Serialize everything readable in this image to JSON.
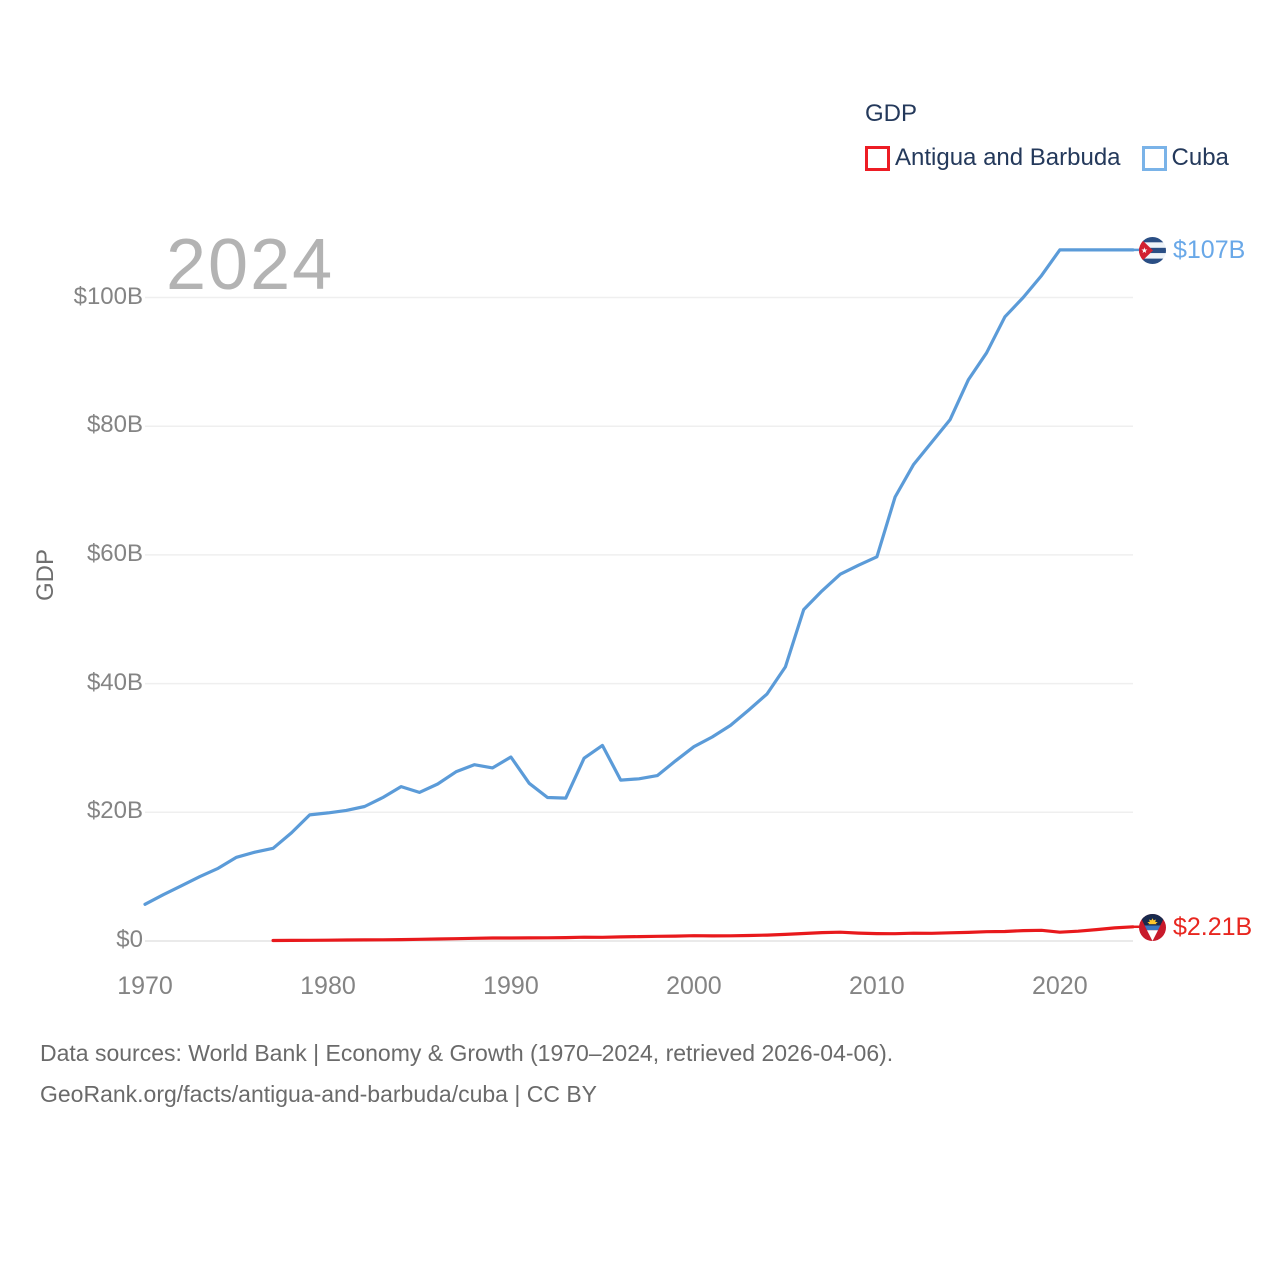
{
  "watermark": "2024",
  "legend": {
    "title": "GDP",
    "items": [
      {
        "label": "Antigua and Barbuda",
        "color": "#ed1c24"
      },
      {
        "label": "Cuba",
        "color": "#7ab3e8"
      }
    ]
  },
  "y_axis": {
    "title": "GDP",
    "ticks": [
      {
        "label": "$0",
        "value": 0
      },
      {
        "label": "$20B",
        "value": 20
      },
      {
        "label": "$40B",
        "value": 40
      },
      {
        "label": "$60B",
        "value": 60
      },
      {
        "label": "$80B",
        "value": 80
      },
      {
        "label": "$100B",
        "value": 100
      }
    ]
  },
  "x_axis": {
    "ticks": [
      {
        "label": "1970",
        "year": 1970
      },
      {
        "label": "1980",
        "year": 1980
      },
      {
        "label": "1990",
        "year": 1990
      },
      {
        "label": "2000",
        "year": 2000
      },
      {
        "label": "2010",
        "year": 2010
      },
      {
        "label": "2020",
        "year": 2020
      }
    ]
  },
  "end_labels": {
    "cuba": {
      "series": "Cuba",
      "text": "$107B",
      "color": "#69a8e8",
      "icon": "cuba-flag-icon"
    },
    "antigua": {
      "series": "Antigua and Barbuda",
      "text": "$2.21B",
      "color": "#e8261f",
      "icon": "antigua-flag-icon"
    }
  },
  "footer": {
    "line1": "Data sources: World Bank | Economy & Growth (1970–2024, retrieved 2026-04-06).",
    "line2": "GeoRank.org/facts/antigua-and-barbuda/cuba | CC BY"
  },
  "chart_data": {
    "type": "line",
    "title": "GDP",
    "xlabel": "",
    "ylabel": "GDP",
    "xlim": [
      1970,
      2024
    ],
    "ylim": [
      0,
      110
    ],
    "grid": true,
    "legend_position": "top-right",
    "units": "billions USD",
    "series": [
      {
        "name": "Antigua and Barbuda",
        "color": "#e8191c",
        "end_value_label": "$2.21B",
        "points": [
          [
            1977,
            0.08
          ],
          [
            1978,
            0.09
          ],
          [
            1979,
            0.11
          ],
          [
            1980,
            0.13
          ],
          [
            1981,
            0.15
          ],
          [
            1982,
            0.17
          ],
          [
            1983,
            0.19
          ],
          [
            1984,
            0.22
          ],
          [
            1985,
            0.26
          ],
          [
            1986,
            0.31
          ],
          [
            1987,
            0.36
          ],
          [
            1988,
            0.42
          ],
          [
            1989,
            0.46
          ],
          [
            1990,
            0.46
          ],
          [
            1991,
            0.48
          ],
          [
            1992,
            0.5
          ],
          [
            1993,
            0.53
          ],
          [
            1994,
            0.59
          ],
          [
            1995,
            0.58
          ],
          [
            1996,
            0.63
          ],
          [
            1997,
            0.68
          ],
          [
            1998,
            0.73
          ],
          [
            1999,
            0.76
          ],
          [
            2000,
            0.83
          ],
          [
            2001,
            0.8
          ],
          [
            2002,
            0.81
          ],
          [
            2003,
            0.86
          ],
          [
            2004,
            0.92
          ],
          [
            2005,
            1.02
          ],
          [
            2006,
            1.16
          ],
          [
            2007,
            1.31
          ],
          [
            2008,
            1.37
          ],
          [
            2009,
            1.22
          ],
          [
            2010,
            1.15
          ],
          [
            2011,
            1.14
          ],
          [
            2012,
            1.21
          ],
          [
            2013,
            1.19
          ],
          [
            2014,
            1.27
          ],
          [
            2015,
            1.34
          ],
          [
            2016,
            1.44
          ],
          [
            2017,
            1.47
          ],
          [
            2018,
            1.61
          ],
          [
            2019,
            1.66
          ],
          [
            2020,
            1.37
          ],
          [
            2021,
            1.53
          ],
          [
            2022,
            1.77
          ],
          [
            2023,
            2.03
          ],
          [
            2024,
            2.21
          ]
        ]
      },
      {
        "name": "Cuba",
        "color": "#5b9bd8",
        "end_value_label": "$107B",
        "points": [
          [
            1970,
            5.7
          ],
          [
            1971,
            7.2
          ],
          [
            1972,
            8.6
          ],
          [
            1973,
            10.0
          ],
          [
            1974,
            11.3
          ],
          [
            1975,
            13.0
          ],
          [
            1976,
            13.8
          ],
          [
            1977,
            14.4
          ],
          [
            1978,
            16.8
          ],
          [
            1979,
            19.6
          ],
          [
            1980,
            19.9
          ],
          [
            1981,
            20.3
          ],
          [
            1982,
            20.9
          ],
          [
            1983,
            22.3
          ],
          [
            1984,
            24.0
          ],
          [
            1985,
            23.1
          ],
          [
            1986,
            24.4
          ],
          [
            1987,
            26.3
          ],
          [
            1988,
            27.4
          ],
          [
            1989,
            26.9
          ],
          [
            1990,
            28.6
          ],
          [
            1991,
            24.5
          ],
          [
            1992,
            22.3
          ],
          [
            1993,
            22.2
          ],
          [
            1994,
            28.4
          ],
          [
            1995,
            30.4
          ],
          [
            1996,
            25.0
          ],
          [
            1997,
            25.2
          ],
          [
            1998,
            25.7
          ],
          [
            1999,
            28.0
          ],
          [
            2000,
            30.2
          ],
          [
            2001,
            31.7
          ],
          [
            2002,
            33.5
          ],
          [
            2003,
            35.9
          ],
          [
            2004,
            38.4
          ],
          [
            2005,
            42.6
          ],
          [
            2006,
            51.5
          ],
          [
            2007,
            54.4
          ],
          [
            2008,
            57.0
          ],
          [
            2009,
            58.4
          ],
          [
            2010,
            59.7
          ],
          [
            2011,
            69.0
          ],
          [
            2012,
            74.0
          ],
          [
            2013,
            77.5
          ],
          [
            2014,
            81.0
          ],
          [
            2015,
            87.2
          ],
          [
            2016,
            91.4
          ],
          [
            2017,
            97.0
          ],
          [
            2018,
            100.0
          ],
          [
            2019,
            103.4
          ],
          [
            2020,
            107.4
          ],
          [
            2021,
            107.4
          ],
          [
            2022,
            107.4
          ],
          [
            2023,
            107.4
          ],
          [
            2024,
            107.4
          ]
        ]
      }
    ]
  }
}
